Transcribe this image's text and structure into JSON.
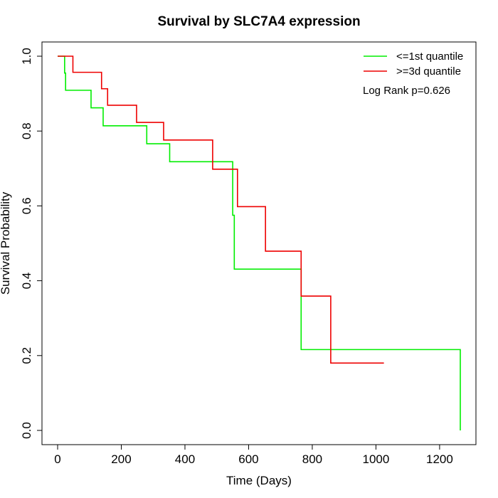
{
  "chart_data": {
    "type": "line",
    "title": "Survival by SLC7A4 expression",
    "xlabel": "Time (Days)",
    "ylabel": "Survival Probability",
    "xlim": [
      0,
      1265
    ],
    "ylim": [
      0,
      1
    ],
    "x_ticks": [
      0,
      200,
      400,
      600,
      800,
      1000,
      1200
    ],
    "y_ticks": [
      0.0,
      0.2,
      0.4,
      0.6,
      0.8,
      1.0
    ],
    "x_tick_labels": [
      "0",
      "200",
      "400",
      "600",
      "800",
      "1000",
      "1200"
    ],
    "y_tick_labels": [
      "0.0",
      "0.2",
      "0.4",
      "0.6",
      "0.8",
      "1.0"
    ],
    "grid": false,
    "legend_position": "top-right",
    "annotation": "Log Rank p=0.626",
    "series": [
      {
        "name": "<=1st quantile",
        "color": "#00ee00",
        "step": true,
        "points": [
          [
            0,
            1.0
          ],
          [
            22,
            1.0
          ],
          [
            22,
            0.955
          ],
          [
            25,
            0.955
          ],
          [
            25,
            0.909
          ],
          [
            105,
            0.909
          ],
          [
            105,
            0.862
          ],
          [
            143,
            0.862
          ],
          [
            143,
            0.814
          ],
          [
            280,
            0.814
          ],
          [
            280,
            0.766
          ],
          [
            352,
            0.766
          ],
          [
            352,
            0.718
          ],
          [
            550,
            0.718
          ],
          [
            550,
            0.575
          ],
          [
            555,
            0.575
          ],
          [
            555,
            0.431
          ],
          [
            765,
            0.431
          ],
          [
            765,
            0.216
          ],
          [
            1265,
            0.216
          ],
          [
            1265,
            0.0
          ]
        ]
      },
      {
        "name": ">=3d quantile",
        "color": "#ee0000",
        "step": true,
        "points": [
          [
            0,
            1.0
          ],
          [
            48,
            1.0
          ],
          [
            48,
            0.957
          ],
          [
            138,
            0.957
          ],
          [
            138,
            0.913
          ],
          [
            157,
            0.913
          ],
          [
            157,
            0.869
          ],
          [
            248,
            0.869
          ],
          [
            248,
            0.823
          ],
          [
            333,
            0.823
          ],
          [
            333,
            0.776
          ],
          [
            487,
            0.776
          ],
          [
            487,
            0.698
          ],
          [
            565,
            0.698
          ],
          [
            565,
            0.598
          ],
          [
            653,
            0.598
          ],
          [
            653,
            0.479
          ],
          [
            765,
            0.479
          ],
          [
            765,
            0.359
          ],
          [
            858,
            0.359
          ],
          [
            858,
            0.18
          ],
          [
            1025,
            0.18
          ]
        ]
      }
    ]
  }
}
